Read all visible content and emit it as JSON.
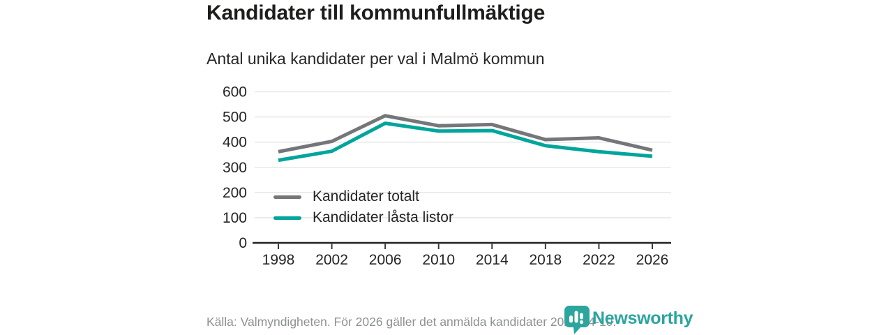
{
  "header": {
    "title": "Kandidater till kommunfullmäktige",
    "subtitle": "Antal unika kandidater per val i Malmö kommun"
  },
  "chart_data": {
    "type": "line",
    "categories": [
      "1998",
      "2002",
      "2006",
      "2010",
      "2014",
      "2018",
      "2022",
      "2026"
    ],
    "series": [
      {
        "name": "Kandidater totalt",
        "color": "#75767a",
        "values": [
          362,
          403,
          505,
          465,
          470,
          410,
          417,
          368
        ]
      },
      {
        "name": "Kandidater låsta listor",
        "color": "#00a59b",
        "values": [
          328,
          364,
          475,
          444,
          446,
          386,
          362,
          344
        ]
      }
    ],
    "title": "Kandidater till kommunfullmäktige",
    "subtitle": "Antal unika kandidater per val i Malmö kommun",
    "xlabel": "",
    "ylabel": "",
    "ylim": [
      0,
      600
    ],
    "ytick_step": 100,
    "grid": "horizontal",
    "legend_position": "inside-bottom-left"
  },
  "footer": {
    "source": "Källa: Valmyndigheten. För 2026 gäller det anmälda kandidater 2026-04-10.",
    "brand": "Newsworthy"
  },
  "colors": {
    "accent_teal": "#00a59b",
    "line_gray": "#75767a",
    "logo_teal": "#2ba59e",
    "grid": "#e4e4e4",
    "axis": "#222222",
    "tick": "#3a3a3a",
    "text_dark": "#242424",
    "text_muted": "#8e9093"
  }
}
